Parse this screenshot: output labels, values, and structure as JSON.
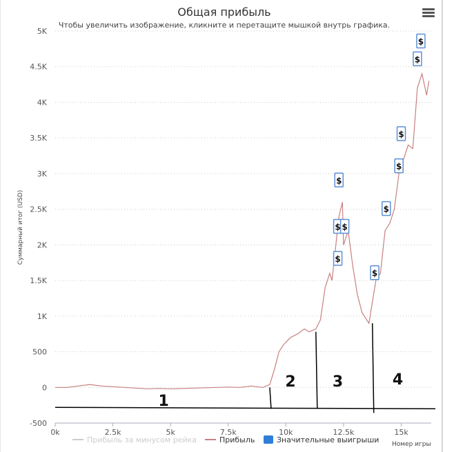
{
  "chart_data": {
    "type": "line",
    "title": "Общая прибыль",
    "subtitle": "Чтобы увеличить изображение, кликните и перетащите мышкой внутрь графика.",
    "ylabel": "Суммарный итог (USD)",
    "xlabel": "Номер игры",
    "xlim": [
      0,
      16300
    ],
    "ylim": [
      -500,
      5000
    ],
    "yticks": [
      -500,
      0,
      500,
      1000,
      1500,
      2000,
      2500,
      3000,
      3500,
      4000,
      4500,
      5000
    ],
    "ytick_labels": [
      "-500",
      "0",
      "500",
      "1K",
      "1.5K",
      "2K",
      "2.5K",
      "3K",
      "3.5K",
      "4K",
      "4.5K",
      "5K"
    ],
    "xticks": [
      0,
      2500,
      5000,
      7500,
      10000,
      12500,
      15000
    ],
    "xtick_labels": [
      "0k",
      "2.5k",
      "5k",
      "7.5k",
      "10k",
      "12.5k",
      "15k"
    ],
    "grid": true,
    "series": [
      {
        "name": "Прибыль",
        "color": "#c87f7f",
        "points": [
          [
            0,
            0
          ],
          [
            500,
            0
          ],
          [
            1000,
            20
          ],
          [
            1500,
            40
          ],
          [
            2000,
            20
          ],
          [
            2500,
            10
          ],
          [
            3000,
            0
          ],
          [
            3500,
            -10
          ],
          [
            4000,
            -20
          ],
          [
            4500,
            -15
          ],
          [
            5000,
            -20
          ],
          [
            5500,
            -15
          ],
          [
            6000,
            -10
          ],
          [
            6500,
            -5
          ],
          [
            7000,
            0
          ],
          [
            7500,
            5
          ],
          [
            8000,
            0
          ],
          [
            8500,
            20
          ],
          [
            9000,
            0
          ],
          [
            9300,
            40
          ],
          [
            9500,
            250
          ],
          [
            9700,
            500
          ],
          [
            9900,
            600
          ],
          [
            10200,
            700
          ],
          [
            10500,
            750
          ],
          [
            10800,
            820
          ],
          [
            11000,
            780
          ],
          [
            11300,
            820
          ],
          [
            11500,
            950
          ],
          [
            11700,
            1400
          ],
          [
            11900,
            1600
          ],
          [
            12000,
            1500
          ],
          [
            12200,
            2100
          ],
          [
            12300,
            2400
          ],
          [
            12450,
            2600
          ],
          [
            12500,
            2000
          ],
          [
            12700,
            2200
          ],
          [
            12900,
            1700
          ],
          [
            13100,
            1300
          ],
          [
            13300,
            1050
          ],
          [
            13600,
            900
          ],
          [
            13900,
            1500
          ],
          [
            14100,
            1600
          ],
          [
            14300,
            2200
          ],
          [
            14500,
            2300
          ],
          [
            14700,
            2500
          ],
          [
            14900,
            3000
          ],
          [
            15100,
            3200
          ],
          [
            15300,
            3400
          ],
          [
            15500,
            3350
          ],
          [
            15700,
            4200
          ],
          [
            15900,
            4400
          ],
          [
            16100,
            4100
          ],
          [
            16200,
            4300
          ]
        ]
      },
      {
        "name": "Прибыль за минусом рейка",
        "color": "#cccccc",
        "visible": false,
        "points": []
      },
      {
        "name": "Значительные выигрыши",
        "color": "#2f7ed8",
        "marker_label": "$",
        "points": [
          [
            12250,
            1800
          ],
          [
            12250,
            2250
          ],
          [
            12300,
            2900
          ],
          [
            12550,
            2250
          ],
          [
            13850,
            1600
          ],
          [
            14350,
            2500
          ],
          [
            14900,
            3100
          ],
          [
            15000,
            3550
          ],
          [
            15700,
            4600
          ],
          [
            15850,
            4850
          ]
        ]
      }
    ],
    "annotations": [
      {
        "label": "1",
        "x": 4700,
        "y": -180
      },
      {
        "label": "2",
        "x": 10200,
        "y": 90
      },
      {
        "label": "3",
        "x": 12250,
        "y": 90
      },
      {
        "label": "4",
        "x": 14850,
        "y": 120
      }
    ],
    "dividers": [
      9300,
      11300,
      13750
    ],
    "baseline_y": -280
  },
  "legend": {
    "items": [
      {
        "label": "Прибыль за минусом рейка",
        "color": "#cccccc",
        "muted": true
      },
      {
        "label": "Прибыль",
        "color": "#c87f7f",
        "muted": false
      },
      {
        "label": "Значительные выигрыши",
        "color": "#2f7ed8",
        "muted": false
      }
    ]
  },
  "menu": {
    "icon": "hamburger-menu-icon"
  }
}
